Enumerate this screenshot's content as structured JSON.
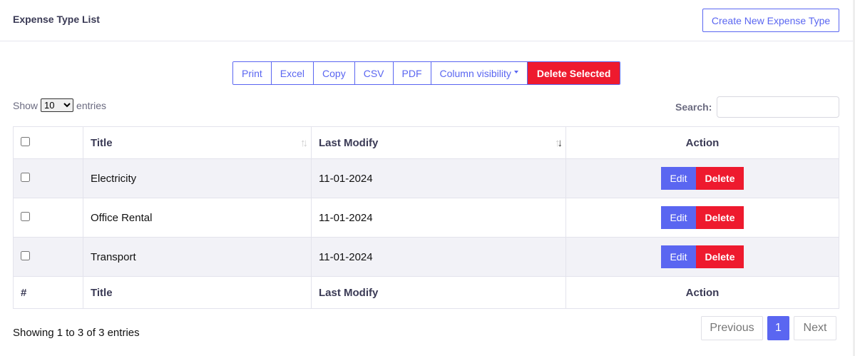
{
  "header": {
    "title": "Expense Type List",
    "create_label": "Create New Expense Type"
  },
  "toolbar": {
    "buttons": [
      "Print",
      "Excel",
      "Copy",
      "CSV",
      "PDF",
      "Column visibility"
    ],
    "delete_selected": "Delete Selected"
  },
  "length": {
    "show": "Show",
    "value": "10",
    "entries": "entries"
  },
  "search": {
    "label": "Search:",
    "value": ""
  },
  "table": {
    "headers": [
      "Title",
      "Last Modify",
      "Action"
    ],
    "footers": [
      "#",
      "Title",
      "Last Modify",
      "Action"
    ],
    "rows": [
      {
        "title": "Electricity",
        "modified": "11-01-2024"
      },
      {
        "title": "Office Rental",
        "modified": "11-01-2024"
      },
      {
        "title": "Transport",
        "modified": "11-01-2024"
      }
    ],
    "edit_label": "Edit",
    "delete_label": "Delete"
  },
  "info": "Showing 1 to 3 of 3 entries",
  "pagination": {
    "previous": "Previous",
    "current": "1",
    "next": "Next"
  },
  "colors": {
    "primary": "#5a66f1",
    "danger": "#ee1a2e",
    "stripe": "#f2f2f7"
  }
}
